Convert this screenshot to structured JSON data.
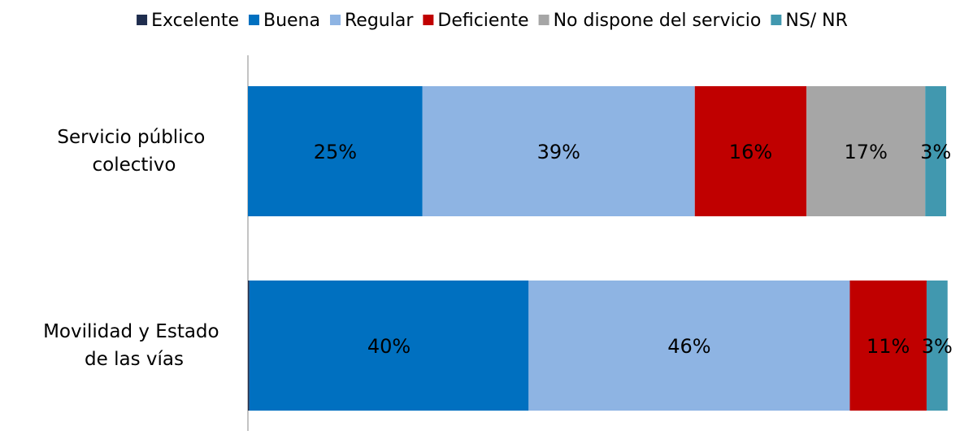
{
  "chart_data": {
    "type": "stacked-bar-horizontal",
    "categories": [
      "Servicio público colectivo",
      "Movilidad y Estado de las vías"
    ],
    "series": [
      {
        "name": "Excelente",
        "color": "#1f2d4e",
        "values": [
          0,
          0.2
        ],
        "value_labels": [
          null,
          null
        ]
      },
      {
        "name": "Buena",
        "color": "#0070c0",
        "values": [
          25,
          40
        ],
        "value_labels": [
          "25%",
          "40%"
        ]
      },
      {
        "name": "Regular",
        "color": "#8eb4e3",
        "values": [
          39,
          46
        ],
        "value_labels": [
          "39%",
          "46%"
        ]
      },
      {
        "name": "Deficiente",
        "color": "#c00000",
        "values": [
          16,
          11
        ],
        "value_labels": [
          "16%",
          "11%"
        ]
      },
      {
        "name": "No dispone del servicio",
        "color": "#a6a6a6",
        "values": [
          17,
          0
        ],
        "value_labels": [
          "17%",
          null
        ]
      },
      {
        "name": "NS/ NR",
        "color": "#4198af",
        "values": [
          3,
          3
        ],
        "value_labels": [
          "3%",
          "3%"
        ]
      }
    ],
    "xlim": [
      0,
      100
    ],
    "legend": "top"
  }
}
